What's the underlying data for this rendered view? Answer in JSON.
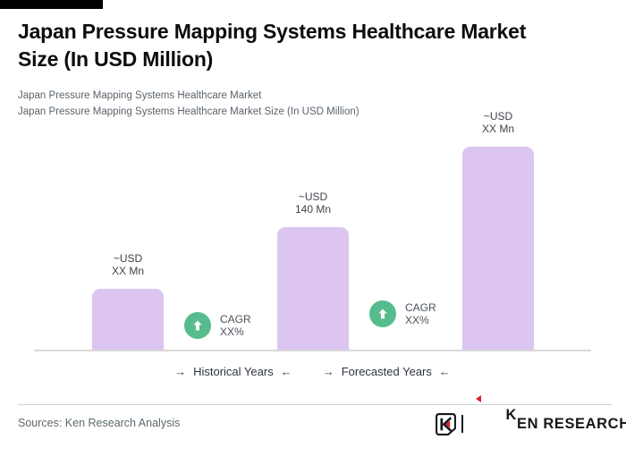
{
  "header": {
    "title_line1": "Japan Pressure Mapping Systems Healthcare Market",
    "title_line2": "Size (In USD Million)",
    "subtitle_line1": "Japan Pressure Mapping Systems Healthcare Market",
    "subtitle_line2": "Japan Pressure Mapping Systems Healthcare Market Size (In USD Million)"
  },
  "chart_data": {
    "type": "bar",
    "title": "Japan Pressure Mapping Systems Healthcare Market Size (In USD Million)",
    "xlabel": "",
    "ylabel": "",
    "values": [
      70,
      140,
      233
    ],
    "values_estimated": [
      true,
      false,
      true
    ],
    "value_labels": [
      [
        "~USD",
        "XX Mn"
      ],
      [
        "~USD",
        "140 Mn"
      ],
      [
        "~USD",
        "XX Mn"
      ]
    ],
    "ylim": [
      0,
      240
    ],
    "grid": false,
    "bar_color": "#dcc5f1",
    "baseline_color": "#d9d9d9",
    "annotations": [
      {
        "icon": "up-arrow-circle",
        "circle_color": "#57bc8d",
        "line1": "CAGR",
        "line2": "XX%"
      },
      {
        "icon": "up-arrow-circle",
        "circle_color": "#57bc8d",
        "line1": "CAGR",
        "line2": "XX%"
      }
    ],
    "x_groups": [
      {
        "arrow_in": "→",
        "label": "Historical Years",
        "arrow_out": "←"
      },
      {
        "arrow_in": "→",
        "label": "Forecasted Years",
        "arrow_out": "←"
      }
    ],
    "legend_position": "bottom"
  },
  "footer": {
    "sources": "Sources: Ken Research Analysis",
    "logo": {
      "k": "K",
      "rest": "EN RESEARCH",
      "red": "#da2128",
      "black": "#15181a"
    }
  }
}
